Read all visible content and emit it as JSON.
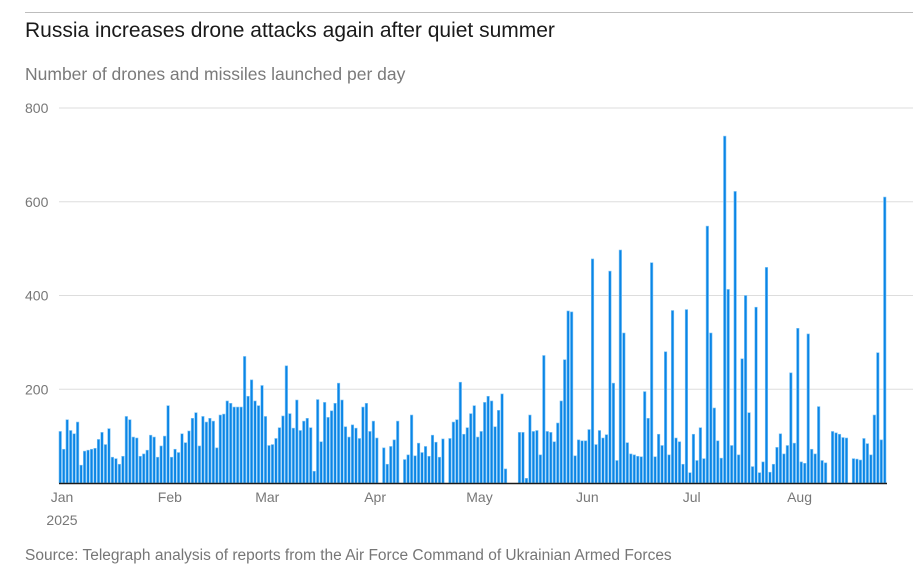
{
  "title": "Russia increases drone attacks again after quiet summer",
  "subtitle": "Number of drones and missiles launched per day",
  "source": "Source: Telegraph analysis of reports from the Air Force Command of Ukrainian Armed Forces",
  "colors": {
    "bar": "#0a85e6",
    "bar_edge": "#7cc3f5",
    "grid": "#dddddd",
    "axis": "#1a1a1a"
  },
  "chart_data": {
    "type": "bar",
    "title": "Russia increases drone attacks again after quiet summer",
    "subtitle": "Number of drones and missiles launched per day",
    "xlabel": "",
    "ylabel": "Number of drones and missiles launched per day",
    "ylim": [
      0,
      800
    ],
    "yticks": [
      {
        "value": 200,
        "label": "200"
      },
      {
        "value": 400,
        "label": "400"
      },
      {
        "value": 600,
        "label": "600"
      },
      {
        "value": 800,
        "label": "800"
      }
    ],
    "grid": true,
    "x_start": "2025-01-01",
    "xticks": [
      {
        "day": 0,
        "label": "Jan",
        "sublabel": "2025"
      },
      {
        "day": 31,
        "label": "Feb"
      },
      {
        "day": 59,
        "label": "Mar"
      },
      {
        "day": 90,
        "label": "Apr"
      },
      {
        "day": 120,
        "label": "May"
      },
      {
        "day": 151,
        "label": "Jun"
      },
      {
        "day": 181,
        "label": "Jul"
      },
      {
        "day": 212,
        "label": "Aug"
      }
    ],
    "values": [
      110,
      72,
      135,
      112,
      105,
      130,
      38,
      68,
      70,
      72,
      74,
      93,
      108,
      82,
      116,
      55,
      52,
      40,
      57,
      142,
      135,
      98,
      96,
      57,
      62,
      70,
      102,
      98,
      55,
      79,
      100,
      165,
      55,
      72,
      65,
      105,
      86,
      111,
      138,
      150,
      79,
      142,
      130,
      138,
      132,
      75,
      145,
      147,
      175,
      170,
      162,
      162,
      162,
      270,
      185,
      220,
      175,
      165,
      208,
      142,
      80,
      82,
      95,
      118,
      143,
      250,
      148,
      117,
      177,
      112,
      132,
      138,
      118,
      25,
      178,
      88,
      172,
      140,
      154,
      170,
      213,
      177,
      120,
      98,
      124,
      117,
      95,
      162,
      170,
      110,
      132,
      96,
      null,
      75,
      40,
      78,
      92,
      132,
      null,
      50,
      60,
      145,
      58,
      85,
      65,
      78,
      57,
      102,
      87,
      55,
      94,
      null,
      95,
      130,
      135,
      215,
      104,
      118,
      148,
      165,
      98,
      110,
      172,
      185,
      175,
      120,
      155,
      190,
      30,
      null,
      null,
      null,
      108,
      108,
      10,
      145,
      110,
      112,
      60,
      272,
      110,
      108,
      88,
      128,
      175,
      263,
      367,
      365,
      58,
      92,
      90,
      90,
      114,
      478,
      82,
      112,
      96,
      103,
      452,
      213,
      48,
      497,
      320,
      86,
      62,
      60,
      57,
      56,
      195,
      138,
      470,
      56,
      104,
      80,
      280,
      60,
      368,
      96,
      88,
      40,
      370,
      22,
      104,
      48,
      118,
      52,
      548,
      320,
      160,
      90,
      53,
      740,
      413,
      80,
      622,
      60,
      265,
      400,
      150,
      35,
      375,
      22,
      45,
      460,
      23,
      40,
      76,
      105,
      62,
      80,
      235,
      85,
      330,
      45,
      42,
      318,
      72,
      62,
      163,
      48,
      43,
      null,
      110,
      107,
      104,
      97,
      96,
      null,
      52,
      51,
      49,
      95,
      84,
      60,
      145,
      278,
      92,
      610
    ],
    "legend": "none"
  }
}
